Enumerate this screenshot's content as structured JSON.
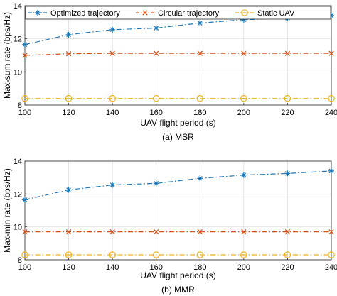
{
  "colors": {
    "optimized": "#1f77b4",
    "circular": "#d95319",
    "static": "#edb120",
    "grid": "#d9d9d9",
    "axis": "#262626"
  },
  "chart_data": [
    {
      "type": "line",
      "caption": "(a) MSR",
      "xlabel": "UAV flight period (s)",
      "ylabel": "Max-sum rate (bps/Hz)",
      "x": [
        100,
        120,
        140,
        160,
        180,
        200,
        220,
        240
      ],
      "x_tick_labels": [
        "100",
        "120",
        "140",
        "160",
        "180",
        "200",
        "220",
        "240"
      ],
      "xlim": [
        100,
        240
      ],
      "ylim": [
        8,
        14
      ],
      "y_ticks": [
        8,
        10,
        12,
        14
      ],
      "grid": true,
      "legend": "top, horizontal",
      "series": [
        {
          "name": "Optimized trajectory",
          "marker": "asterisk",
          "line": "dash-dot",
          "color_key": "optimized",
          "values": [
            11.65,
            12.25,
            12.55,
            12.65,
            12.95,
            13.15,
            13.25,
            13.4
          ]
        },
        {
          "name": "Circular trajectory",
          "marker": "x",
          "line": "dash-dot",
          "color_key": "circular",
          "values": [
            11.0,
            11.1,
            11.12,
            11.12,
            11.12,
            11.12,
            11.12,
            11.12
          ]
        },
        {
          "name": "Static UAV",
          "marker": "circle",
          "line": "dash-dot",
          "color_key": "static",
          "values": [
            8.4,
            8.4,
            8.4,
            8.4,
            8.4,
            8.4,
            8.4,
            8.4
          ]
        }
      ]
    },
    {
      "type": "line",
      "caption": "(b) MMR",
      "xlabel": "UAV flight period (s)",
      "ylabel": "Max-min rate (bps/Hz)",
      "x": [
        100,
        120,
        140,
        160,
        180,
        200,
        220,
        240
      ],
      "x_tick_labels": [
        "100",
        "120",
        "140",
        "160",
        "180",
        "200",
        "220",
        "240"
      ],
      "xlim": [
        100,
        240
      ],
      "ylim": [
        8,
        14
      ],
      "y_ticks": [
        8,
        10,
        12,
        14
      ],
      "grid": true,
      "legend": "none",
      "series": [
        {
          "marker": "asterisk",
          "line": "dash-dot",
          "color_key": "optimized",
          "values": [
            11.65,
            12.25,
            12.55,
            12.65,
            12.95,
            13.15,
            13.25,
            13.4
          ]
        },
        {
          "marker": "x",
          "line": "dash-dot",
          "color_key": "circular",
          "values": [
            9.7,
            9.7,
            9.7,
            9.7,
            9.7,
            9.7,
            9.7,
            9.7
          ]
        },
        {
          "marker": "circle",
          "line": "dash-dot",
          "color_key": "static",
          "values": [
            8.3,
            8.3,
            8.3,
            8.3,
            8.3,
            8.3,
            8.3,
            8.3
          ]
        }
      ]
    }
  ]
}
